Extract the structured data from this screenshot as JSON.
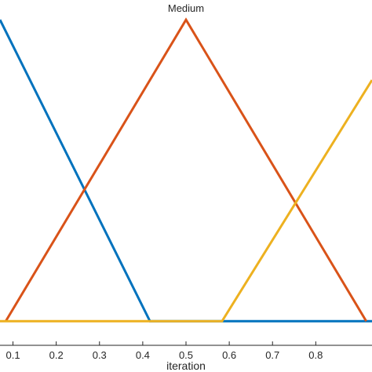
{
  "chart_data": {
    "type": "line",
    "title": "",
    "xlabel": "iteration",
    "ylabel": "",
    "xlim": [
      0.07,
      0.93
    ],
    "ylim": [
      -0.08,
      1.05
    ],
    "grid": false,
    "xticks": [
      "0.1",
      "0.2",
      "0.3",
      "0.4",
      "0.5",
      "0.6",
      "0.7",
      "0.8"
    ],
    "series": [
      {
        "color": "#0072BD",
        "x": [
          0.07,
          0.4167,
          0.93
        ],
        "y": [
          1.0,
          0.0,
          0.0
        ]
      },
      {
        "color": "#D95319",
        "x": [
          0.0833,
          0.5,
          0.9167
        ],
        "y": [
          0.0,
          1.0,
          0.0
        ]
      },
      {
        "color": "#EDB120",
        "x": [
          0.07,
          0.5833,
          0.93
        ],
        "y": [
          0.0,
          0.0,
          0.8
        ]
      }
    ],
    "annotations": [
      {
        "text": "Medium",
        "x": 0.5,
        "y": 1.0
      }
    ]
  }
}
